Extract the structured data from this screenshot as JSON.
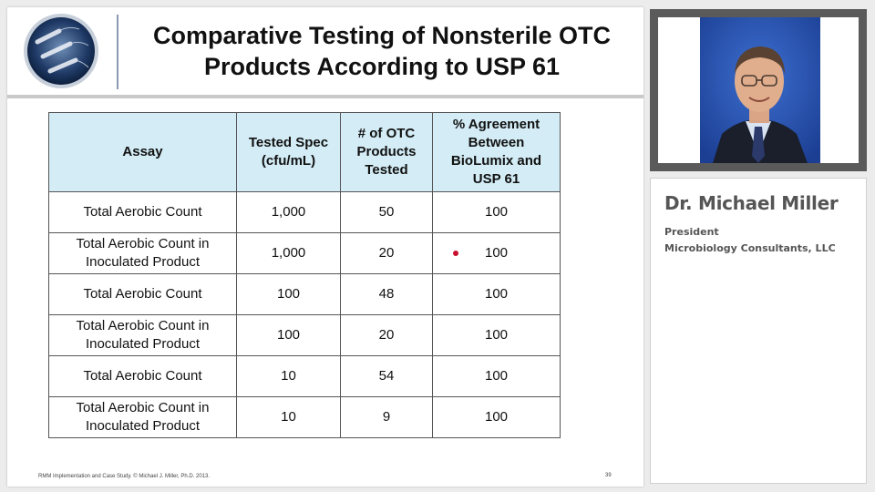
{
  "slide": {
    "title_line1": "Comparative Testing of Nonsterile OTC",
    "title_line2": "Products According to USP 61",
    "footer": "RMM Implementation and Case Study. © Michael J. Miller, Ph.D. 2013.",
    "page_number": "39"
  },
  "table": {
    "headers": {
      "assay": "Assay",
      "spec_line1": "Tested Spec",
      "spec_line2": "(cfu/mL)",
      "count_line1": "# of OTC",
      "count_line2": "Products",
      "count_line3": "Tested",
      "agree_line1": "% Agreement",
      "agree_line2": "Between",
      "agree_line3": "BioLumix and",
      "agree_line4": "USP 61"
    },
    "rows": [
      {
        "assay_line1": "Total Aerobic Count",
        "assay_line2": "",
        "spec": "1,000",
        "count": "50",
        "agreement": "100"
      },
      {
        "assay_line1": "Total Aerobic Count in",
        "assay_line2": "Inoculated Product",
        "spec": "1,000",
        "count": "20",
        "agreement": "100"
      },
      {
        "assay_line1": "Total Aerobic Count",
        "assay_line2": "",
        "spec": "100",
        "count": "48",
        "agreement": "100"
      },
      {
        "assay_line1": "Total Aerobic Count in",
        "assay_line2": "Inoculated Product",
        "spec": "100",
        "count": "20",
        "agreement": "100"
      },
      {
        "assay_line1": "Total Aerobic Count",
        "assay_line2": "",
        "spec": "10",
        "count": "54",
        "agreement": "100"
      },
      {
        "assay_line1": "Total Aerobic Count in",
        "assay_line2": "Inoculated Product",
        "spec": "10",
        "count": "9",
        "agreement": "100"
      }
    ]
  },
  "presenter": {
    "name": "Dr. Michael Miller",
    "role": "President",
    "organization": "Microbiology Consultants, LLC"
  },
  "icons": {
    "logo": "bacteria-microscopy-logo",
    "pointer": "laser-pointer-dot"
  },
  "colors": {
    "table_header_bg": "#d3ecf5",
    "pointer_dot": "#c8102e",
    "photo_bg": "#2a55b5",
    "presenter_text": "#555555"
  }
}
